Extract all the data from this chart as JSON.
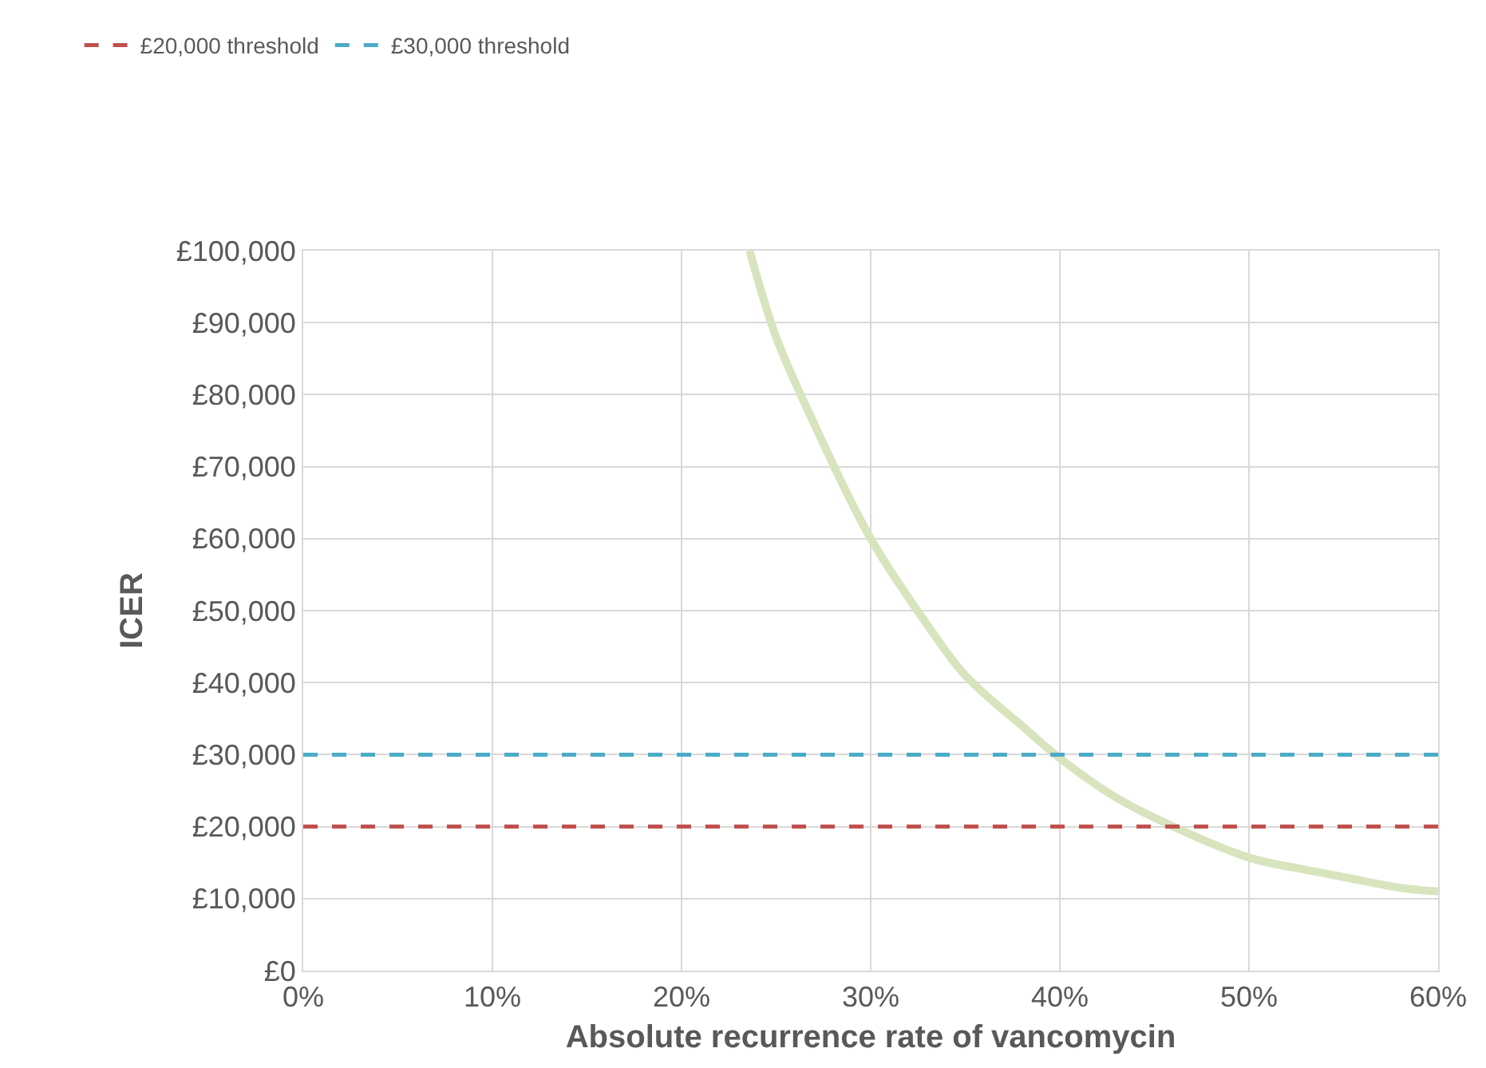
{
  "chart_data": {
    "type": "line",
    "xlabel": "Absolute recurrence rate of vancomycin",
    "ylabel": "ICER",
    "x": [
      23.6,
      25,
      27,
      30,
      33,
      35,
      38,
      40,
      43,
      46,
      50,
      53,
      55,
      58,
      60
    ],
    "series": [
      {
        "color": "#d7e4bd",
        "values": [
          100000,
          88000,
          76000,
          60000,
          48000,
          41000,
          34000,
          29500,
          24000,
          20000,
          15700,
          14000,
          13000,
          11500,
          11000
        ]
      }
    ],
    "xlim": [
      0,
      60
    ],
    "ylim": [
      0,
      100000
    ],
    "xticks": [
      {
        "value": 0,
        "label": "0%"
      },
      {
        "value": 10,
        "label": "10%"
      },
      {
        "value": 20,
        "label": "20%"
      },
      {
        "value": 30,
        "label": "30%"
      },
      {
        "value": 40,
        "label": "40%"
      },
      {
        "value": 50,
        "label": "50%"
      },
      {
        "value": 60,
        "label": "60%"
      }
    ],
    "yticks": [
      {
        "value": 0,
        "label": "£0"
      },
      {
        "value": 10000,
        "label": "£10,000"
      },
      {
        "value": 20000,
        "label": "£20,000"
      },
      {
        "value": 30000,
        "label": "£30,000"
      },
      {
        "value": 40000,
        "label": "£40,000"
      },
      {
        "value": 50000,
        "label": "£50,000"
      },
      {
        "value": 60000,
        "label": "£60,000"
      },
      {
        "value": 70000,
        "label": "£70,000"
      },
      {
        "value": 80000,
        "label": "£80,000"
      },
      {
        "value": 90000,
        "label": "£90,000"
      },
      {
        "value": 100000,
        "label": "£100,000"
      }
    ],
    "ref_lines": [
      {
        "axis": "y",
        "value": 20000,
        "label": "£20,000 threshold",
        "color": "#c0504d",
        "line_style": "dashed"
      },
      {
        "axis": "y",
        "value": 30000,
        "label": "£30,000 threshold",
        "color": "#4bacc6",
        "line_style": "dashed"
      }
    ],
    "grid": true,
    "legend": "top left",
    "marker": "none",
    "line_style": "solid"
  }
}
